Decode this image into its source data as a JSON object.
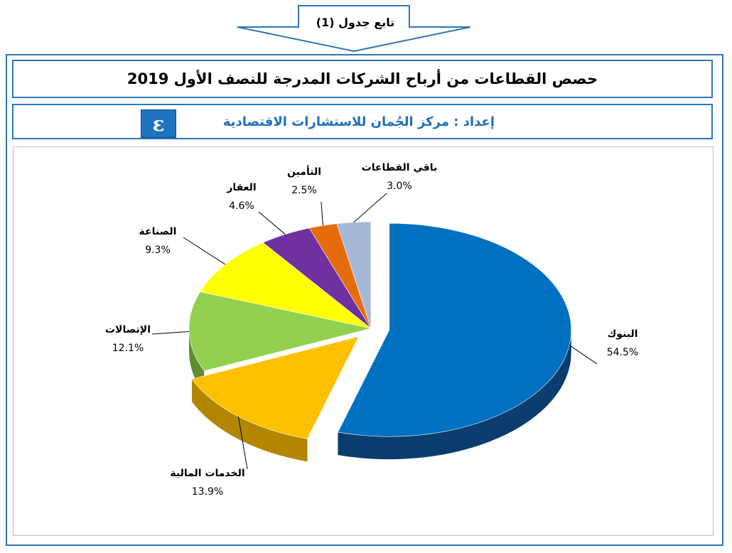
{
  "header": {
    "continuation_label": "تابع جدول (1)",
    "title": "حصص القطاعات من أرباح الشركات المدرجة للنصف الأول 2019",
    "subtitle": "إعداد : مركز الجُمان للاستشارات الاقتصادية",
    "logo_glyph": "ε"
  },
  "chart_data": {
    "type": "pie",
    "title": "",
    "three_d": true,
    "legend": "none",
    "slices": [
      {
        "label": "البنوك",
        "value": 54.5,
        "value_label": "54.5%",
        "color": "#0070c0",
        "side_color": "#0a3d6e",
        "exploded": true
      },
      {
        "label": "الخدمات المالية",
        "value": 13.9,
        "value_label": "13.9%",
        "color": "#ffc000",
        "side_color": "#b38600",
        "exploded": true
      },
      {
        "label": "الإتصالات",
        "value": 12.1,
        "value_label": "12.1%",
        "color": "#92d050",
        "side_color": "#5e8c2e",
        "exploded": false
      },
      {
        "label": "الصناعة",
        "value": 9.3,
        "value_label": "9.3%",
        "color": "#ffff00",
        "side_color": "#b3b300",
        "exploded": false
      },
      {
        "label": "العقار",
        "value": 4.6,
        "value_label": "4.6%",
        "color": "#7030a0",
        "side_color": "#4a1f6b",
        "exploded": false
      },
      {
        "label": "التأمين",
        "value": 2.5,
        "value_label": "2.5%",
        "color": "#e46c0a",
        "side_color": "#a04b05",
        "exploded": false
      },
      {
        "label": "باقي القطاعات",
        "value": 3.0,
        "value_label": "3.0%",
        "color": "#a6b8d8",
        "side_color": "#6f84a8",
        "exploded": false
      }
    ]
  }
}
